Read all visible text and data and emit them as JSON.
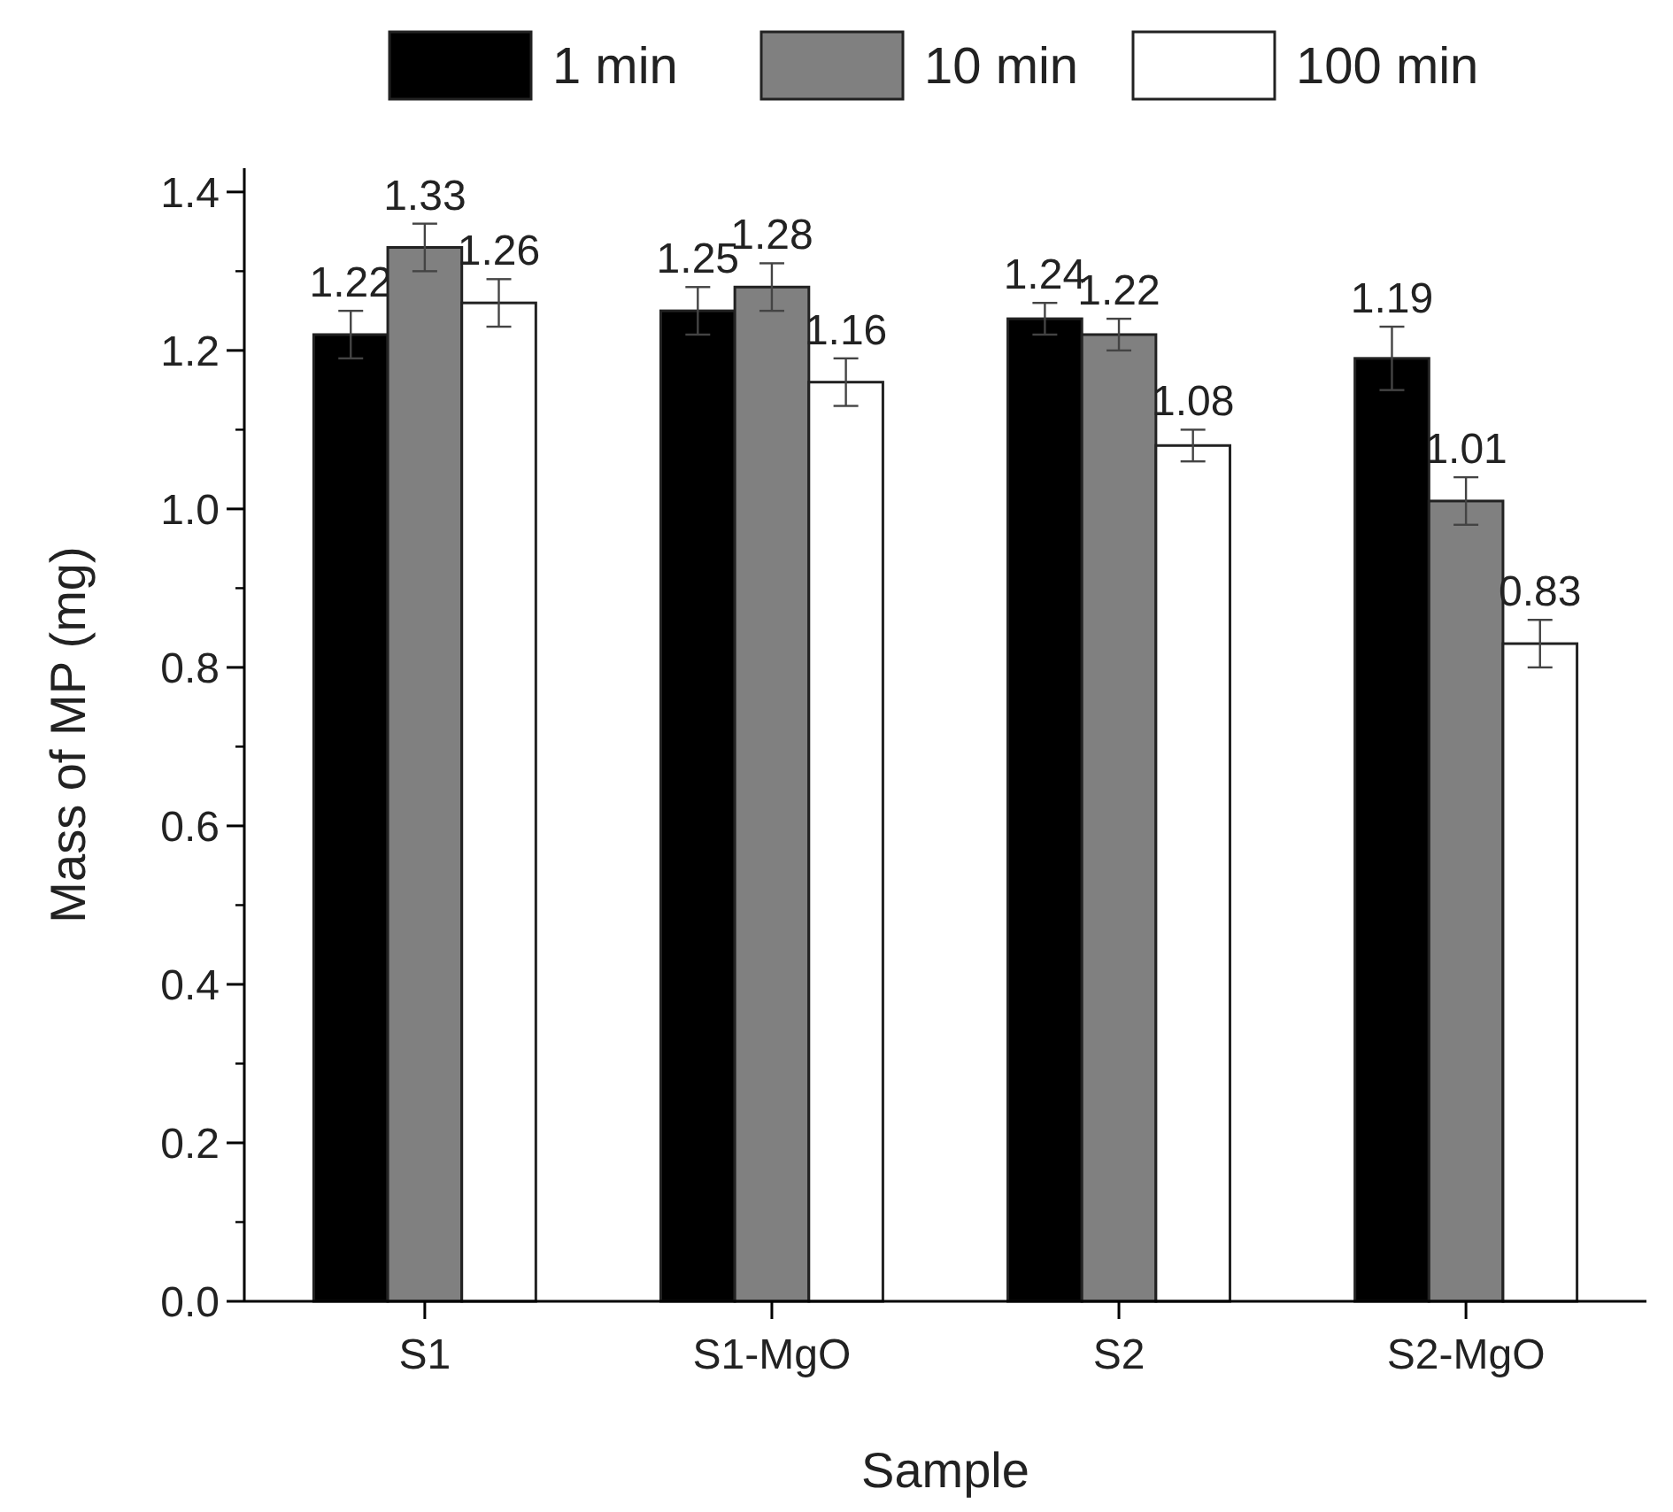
{
  "chart_data": {
    "type": "bar",
    "xlabel": "Sample",
    "ylabel": "Mass of MP (mg)",
    "categories": [
      "S1",
      "S1-MgO",
      "S2",
      "S2-MgO"
    ],
    "series": [
      {
        "name": "1 min",
        "color": "#000000",
        "values": [
          1.22,
          1.25,
          1.24,
          1.19
        ],
        "errors": [
          0.03,
          0.03,
          0.02,
          0.04
        ]
      },
      {
        "name": "10 min",
        "color": "#808080",
        "values": [
          1.33,
          1.28,
          1.22,
          1.01
        ],
        "errors": [
          0.03,
          0.03,
          0.02,
          0.03
        ]
      },
      {
        "name": "100 min",
        "color": "#ffffff",
        "values": [
          1.26,
          1.16,
          1.08,
          0.83
        ],
        "errors": [
          0.03,
          0.03,
          0.02,
          0.03
        ]
      }
    ],
    "ylim": [
      0,
      1.43
    ],
    "yticks": [
      {
        "value": 0,
        "label": "0.0"
      },
      0.2,
      0.4,
      0.6,
      0.8,
      {
        "value": 1,
        "label": "1.0"
      },
      1.2,
      1.4
    ],
    "data_labels": true,
    "legend": "top",
    "grid": false
  }
}
